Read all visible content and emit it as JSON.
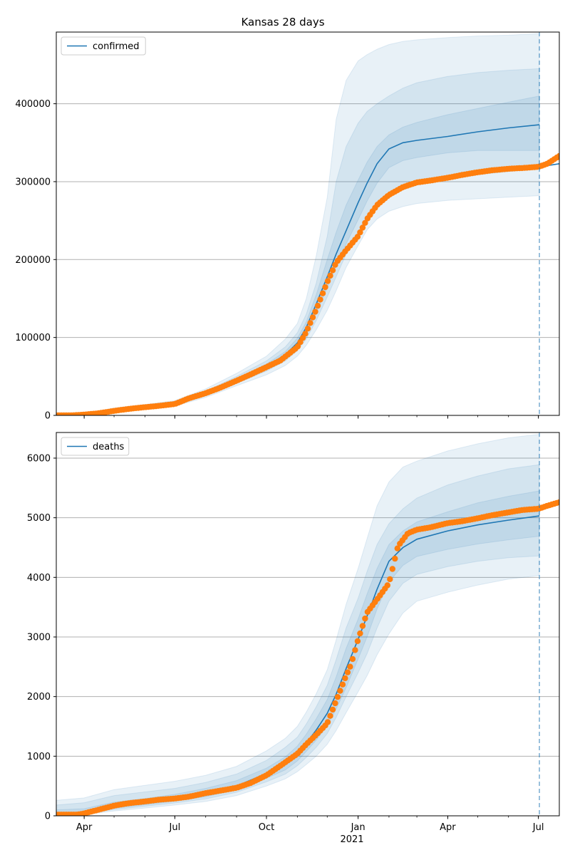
{
  "figure": {
    "title": "Kansas 28 days"
  },
  "colors": {
    "forecast": "#1f77b4",
    "observed": "#ff7f0e",
    "grid": "#b0b0b0",
    "band": "#1f77b4"
  },
  "x_axis": {
    "ticks": [
      {
        "date": "2020-04-01",
        "label": "Apr"
      },
      {
        "date": "2020-07-01",
        "label": "Jul"
      },
      {
        "date": "2020-10-01",
        "label": "Oct"
      },
      {
        "date": "2021-01-01",
        "label": "Jan"
      },
      {
        "date": "2021-04-01",
        "label": "Apr"
      },
      {
        "date": "2021-07-01",
        "label": "Jul"
      }
    ],
    "year_label": "2021",
    "range": [
      "2020-03-04",
      "2021-07-22"
    ],
    "forecast_start": "2021-07-02"
  },
  "chart_data": [
    {
      "type": "line",
      "legend": "confirmed",
      "legend_position": "upper-left",
      "ylim": [
        0,
        492000
      ],
      "yticks": [
        0,
        100000,
        200000,
        300000,
        400000
      ],
      "ytick_labels": [
        "0",
        "100000",
        "200000",
        "300000",
        "400000"
      ],
      "grid": "horizontal",
      "forecast_line": {
        "x": [
          "2020-03-04",
          "2020-04-01",
          "2020-05-01",
          "2020-06-01",
          "2020-07-01",
          "2020-08-01",
          "2020-09-01",
          "2020-10-01",
          "2020-10-20",
          "2020-11-01",
          "2020-11-10",
          "2020-11-20",
          "2020-12-01",
          "2020-12-10",
          "2020-12-20",
          "2021-01-01",
          "2021-01-10",
          "2021-01-20",
          "2021-02-01",
          "2021-02-15",
          "2021-03-01",
          "2021-04-01",
          "2021-05-01",
          "2021-06-01",
          "2021-07-02"
        ],
        "y": [
          0,
          1500,
          7000,
          11000,
          15000,
          28000,
          45000,
          63000,
          78000,
          93000,
          113000,
          143000,
          178000,
          207000,
          237000,
          273000,
          298000,
          323000,
          342000,
          350000,
          353000,
          358000,
          364000,
          369000,
          373000
        ]
      },
      "tail_line": {
        "x": [
          "2021-07-02",
          "2021-07-22"
        ],
        "y": [
          319000,
          323000
        ]
      },
      "bands": [
        {
          "upper": [
            0,
            2200,
            9500,
            14000,
            19000,
            34000,
            54000,
            76000,
            98000,
            118000,
            150000,
            205000,
            280000,
            380000,
            430000,
            455000,
            463000,
            470000,
            476000,
            480000,
            482000,
            485000,
            487000,
            488000,
            490000
          ],
          "lower": [
            0,
            1000,
            5000,
            8500,
            12000,
            23000,
            38000,
            52000,
            64000,
            76000,
            90000,
            110000,
            135000,
            160000,
            190000,
            218000,
            238000,
            252000,
            262000,
            268000,
            272000,
            276000,
            278000,
            280000,
            282000
          ]
        },
        {
          "upper": [
            0,
            1900,
            8500,
            12500,
            17000,
            31000,
            50000,
            70000,
            88000,
            106000,
            130000,
            170000,
            230000,
            300000,
            345000,
            375000,
            390000,
            400000,
            410000,
            420000,
            427000,
            435000,
            440000,
            443000,
            445000
          ],
          "lower": [
            0,
            1150,
            5800,
            9300,
            13000,
            25000,
            41000,
            57000,
            70000,
            83000,
            98000,
            122000,
            152000,
            178000,
            207000,
            235000,
            255000,
            270000,
            282000,
            290000,
            296000,
            304000,
            309000,
            313000,
            317000
          ]
        },
        {
          "upper": [
            0,
            1700,
            7800,
            11800,
            16000,
            29500,
            47000,
            66000,
            82000,
            99000,
            120000,
            155000,
            200000,
            235000,
            270000,
            302000,
            325000,
            345000,
            360000,
            370000,
            376000,
            386000,
            394000,
            402000,
            410000
          ],
          "lower": [
            0,
            1300,
            6300,
            10000,
            14000,
            26500,
            43000,
            60000,
            74000,
            87000,
            104000,
            131000,
            164000,
            192000,
            220000,
            251000,
            275000,
            298000,
            318000,
            327000,
            331000,
            337000,
            340000,
            340000,
            340000
          ]
        }
      ],
      "observed": {
        "x": [
          "2020-03-04",
          "2020-03-20",
          "2020-04-01",
          "2020-04-15",
          "2020-05-01",
          "2020-05-15",
          "2020-06-01",
          "2020-06-15",
          "2020-07-01",
          "2020-07-15",
          "2020-08-01",
          "2020-08-15",
          "2020-09-01",
          "2020-09-15",
          "2020-10-01",
          "2020-10-15",
          "2020-11-01",
          "2020-11-10",
          "2020-11-20",
          "2020-12-01",
          "2020-12-10",
          "2020-12-20",
          "2021-01-01",
          "2021-01-10",
          "2021-01-20",
          "2021-02-01",
          "2021-02-15",
          "2021-03-01",
          "2021-03-15",
          "2021-04-01",
          "2021-04-15",
          "2021-05-01",
          "2021-05-15",
          "2021-06-01",
          "2021-06-15",
          "2021-07-01",
          "2021-07-10",
          "2021-07-22"
        ],
        "y": [
          0,
          100,
          1000,
          2600,
          5800,
          8200,
          10500,
          12200,
          14600,
          21800,
          28500,
          35200,
          44500,
          52500,
          62000,
          70500,
          87500,
          107000,
          136000,
          171000,
          196000,
          212000,
          230000,
          252000,
          270000,
          283000,
          293000,
          299000,
          301500,
          305000,
          308500,
          312000,
          314500,
          316500,
          317500,
          319000,
          323000,
          333000
        ]
      }
    },
    {
      "type": "line",
      "legend": "deaths",
      "legend_position": "upper-left",
      "ylim": [
        0,
        6430
      ],
      "yticks": [
        0,
        1000,
        2000,
        3000,
        4000,
        5000,
        6000
      ],
      "ytick_labels": [
        "0",
        "1000",
        "2000",
        "3000",
        "4000",
        "5000",
        "6000"
      ],
      "grid": "horizontal",
      "forecast_line": {
        "x": [
          "2020-03-04",
          "2020-04-01",
          "2020-05-01",
          "2020-06-01",
          "2020-07-01",
          "2020-08-01",
          "2020-09-01",
          "2020-10-01",
          "2020-10-20",
          "2020-11-01",
          "2020-11-10",
          "2020-11-20",
          "2020-12-01",
          "2020-12-10",
          "2020-12-20",
          "2021-01-01",
          "2021-01-10",
          "2021-01-20",
          "2021-02-01",
          "2021-02-15",
          "2021-03-01",
          "2021-04-01",
          "2021-05-01",
          "2021-06-01",
          "2021-07-02"
        ],
        "y": [
          0,
          40,
          150,
          220,
          290,
          380,
          500,
          710,
          880,
          1040,
          1220,
          1440,
          1720,
          2040,
          2470,
          2960,
          3350,
          3800,
          4270,
          4500,
          4640,
          4780,
          4880,
          4960,
          5030
        ]
      },
      "tail_line": null,
      "bands": [
        {
          "upper": [
            260,
            300,
            440,
            510,
            580,
            680,
            830,
            1090,
            1300,
            1500,
            1740,
            2050,
            2450,
            2950,
            3550,
            4150,
            4650,
            5200,
            5600,
            5850,
            5950,
            6120,
            6240,
            6340,
            6400
          ],
          "lower": [
            0,
            20,
            80,
            130,
            180,
            240,
            340,
            500,
            620,
            740,
            860,
            1000,
            1200,
            1430,
            1730,
            2080,
            2350,
            2700,
            3050,
            3400,
            3600,
            3750,
            3870,
            3970,
            4030
          ]
        },
        {
          "upper": [
            180,
            220,
            340,
            400,
            460,
            560,
            700,
            930,
            1150,
            1320,
            1540,
            1830,
            2190,
            2620,
            3150,
            3650,
            4100,
            4550,
            4900,
            5150,
            5330,
            5550,
            5700,
            5820,
            5890
          ],
          "lower": [
            0,
            30,
            105,
            160,
            215,
            285,
            395,
            570,
            700,
            840,
            980,
            1150,
            1380,
            1650,
            2000,
            2400,
            2720,
            3150,
            3600,
            3900,
            4050,
            4180,
            4270,
            4330,
            4360
          ]
        },
        {
          "upper": [
            100,
            120,
            230,
            290,
            360,
            460,
            590,
            800,
            990,
            1170,
            1370,
            1630,
            1950,
            2330,
            2810,
            3300,
            3720,
            4150,
            4550,
            4780,
            4930,
            5100,
            5250,
            5360,
            5450
          ],
          "lower": [
            0,
            35,
            125,
            185,
            245,
            320,
            440,
            630,
            770,
            920,
            1080,
            1270,
            1510,
            1790,
            2150,
            2630,
            3000,
            3470,
            3920,
            4200,
            4350,
            4470,
            4560,
            4630,
            4690
          ]
        }
      ],
      "observed": {
        "x": [
          "2020-03-04",
          "2020-03-25",
          "2020-04-01",
          "2020-04-15",
          "2020-05-01",
          "2020-05-15",
          "2020-06-01",
          "2020-06-15",
          "2020-07-01",
          "2020-07-15",
          "2020-08-01",
          "2020-08-15",
          "2020-09-01",
          "2020-09-15",
          "2020-10-01",
          "2020-10-15",
          "2020-11-01",
          "2020-11-10",
          "2020-11-20",
          "2020-12-01",
          "2020-12-10",
          "2020-12-20",
          "2020-12-25",
          "2021-01-01",
          "2021-01-10",
          "2021-01-20",
          "2021-02-01",
          "2021-02-10",
          "2021-02-20",
          "2021-03-01",
          "2021-03-15",
          "2021-04-01",
          "2021-04-15",
          "2021-05-01",
          "2021-05-15",
          "2021-06-01",
          "2021-06-15",
          "2021-07-01",
          "2021-07-10",
          "2021-07-22"
        ],
        "y": [
          20,
          20,
          40,
          100,
          170,
          210,
          240,
          270,
          290,
          320,
          380,
          420,
          470,
          550,
          680,
          840,
          1040,
          1200,
          1360,
          1550,
          1930,
          2350,
          2540,
          2960,
          3410,
          3630,
          3900,
          4520,
          4740,
          4800,
          4840,
          4910,
          4940,
          4990,
          5040,
          5090,
          5130,
          5150,
          5200,
          5260
        ]
      }
    }
  ]
}
